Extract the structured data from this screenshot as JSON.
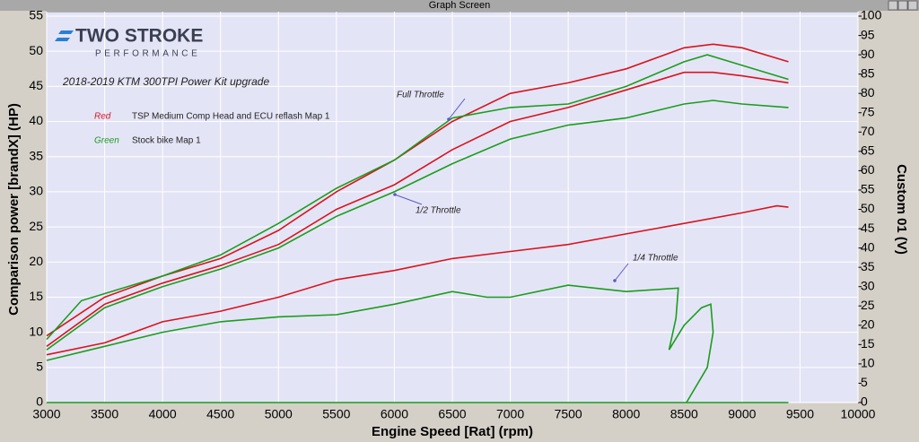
{
  "window": {
    "title": "Graph Screen"
  },
  "chart_data": {
    "type": "line",
    "logo": {
      "main": "TWO STROKE",
      "sub": "PERFORMANCE"
    },
    "title": "2018-2019 KTM 300TPI Power Kit upgrade",
    "x_label": "Engine Speed [Rat] (rpm)",
    "y_label": "Comparison power [brandX] (HP)",
    "y2_label": "Custom 01 (V)",
    "xlim": [
      3000,
      10000
    ],
    "xticks": [
      3000,
      3500,
      4000,
      4500,
      5000,
      5500,
      6000,
      6500,
      7000,
      7500,
      8000,
      8500,
      9000,
      9500,
      10000
    ],
    "ylim": [
      0,
      55
    ],
    "yticks": [
      0,
      5,
      10,
      15,
      20,
      25,
      30,
      35,
      40,
      45,
      50,
      55
    ],
    "y2lim": [
      0,
      100
    ],
    "y2ticks": [
      0,
      5,
      10,
      15,
      20,
      25,
      30,
      35,
      40,
      45,
      50,
      55,
      60,
      65,
      70,
      75,
      80,
      85,
      90,
      95,
      100
    ],
    "grid": true,
    "annotations": [
      {
        "text": "Full Throttle"
      },
      {
        "text": "1/2 Throttle"
      },
      {
        "text": "1/4 Throttle"
      }
    ],
    "series": [
      {
        "name": "TSP Medium Comp Head and ECU reflash Map 1",
        "color_name": "Red",
        "color": "#d9141b",
        "x": [
          3000,
          3500,
          4000,
          4500,
          5000,
          5500,
          6000,
          6500,
          7000,
          7500,
          8000,
          8500,
          8750,
          9000,
          9400
        ],
        "values": [
          9.5,
          15,
          18,
          20.5,
          24.5,
          30,
          34.5,
          40,
          44,
          45.5,
          47.5,
          50.5,
          51,
          50.5,
          48.5
        ]
      },
      {
        "name": "Stock bike Map 1",
        "color_name": "Green",
        "color": "#1a9e1a",
        "x": [
          3000,
          3300,
          3500,
          4000,
          4500,
          5000,
          5500,
          6000,
          6500,
          7000,
          7500,
          8000,
          8500,
          8700,
          9000,
          9400
        ],
        "values": [
          9,
          14.5,
          15.5,
          18,
          21,
          25.5,
          30.5,
          34.5,
          40.5,
          42,
          42.5,
          45,
          48.5,
          49.5,
          48,
          46
        ]
      },
      {
        "name": "TSP Medium Comp Head and ECU reflash Map 1",
        "color": "#d9141b",
        "x": [
          3000,
          3500,
          4000,
          4500,
          5000,
          5500,
          6000,
          6500,
          7000,
          7500,
          8000,
          8500,
          8750,
          9000,
          9400
        ],
        "values": [
          8,
          14,
          17,
          19.5,
          22.5,
          27.5,
          31,
          36,
          40,
          42,
          44.5,
          47,
          47,
          46.5,
          45.5
        ]
      },
      {
        "name": "Stock bike Map 1",
        "color": "#1a9e1a",
        "x": [
          3000,
          3500,
          4000,
          4500,
          5000,
          5500,
          6000,
          6500,
          7000,
          7500,
          8000,
          8500,
          8750,
          9000,
          9400
        ],
        "values": [
          7.5,
          13.5,
          16.5,
          19,
          22,
          26.5,
          30,
          34,
          37.5,
          39.5,
          40.5,
          42.5,
          43,
          42.5,
          42
        ]
      },
      {
        "name": "TSP Medium Comp Head and ECU reflash Map 1",
        "color": "#d9141b",
        "x": [
          3000,
          3500,
          4000,
          4500,
          5000,
          5500,
          6000,
          6500,
          7000,
          7500,
          8000,
          8500,
          9000,
          9300,
          9400
        ],
        "values": [
          6.8,
          8.5,
          11.5,
          13,
          15,
          17.5,
          18.8,
          20.5,
          21.5,
          22.5,
          24,
          25.5,
          27,
          28,
          27.8
        ]
      },
      {
        "name": "Stock bike Map 1",
        "color": "#1a9e1a",
        "x": [
          3000,
          3500,
          4000,
          4500,
          5000,
          5500,
          6000,
          6500,
          6800,
          7000,
          7500,
          8000,
          8450,
          8430,
          8370,
          8500,
          8650,
          8730,
          8750,
          8700,
          8520
        ],
        "values": [
          6,
          8,
          10,
          11.5,
          12.2,
          12.5,
          14,
          15.8,
          15,
          15,
          16.7,
          15.8,
          16.3,
          12,
          7.5,
          11,
          13.5,
          14,
          10,
          5,
          0
        ]
      },
      {
        "color": "#1a9e1a",
        "axis": "y2",
        "x": [
          3000,
          9400
        ],
        "values": [
          0,
          0
        ]
      }
    ]
  }
}
